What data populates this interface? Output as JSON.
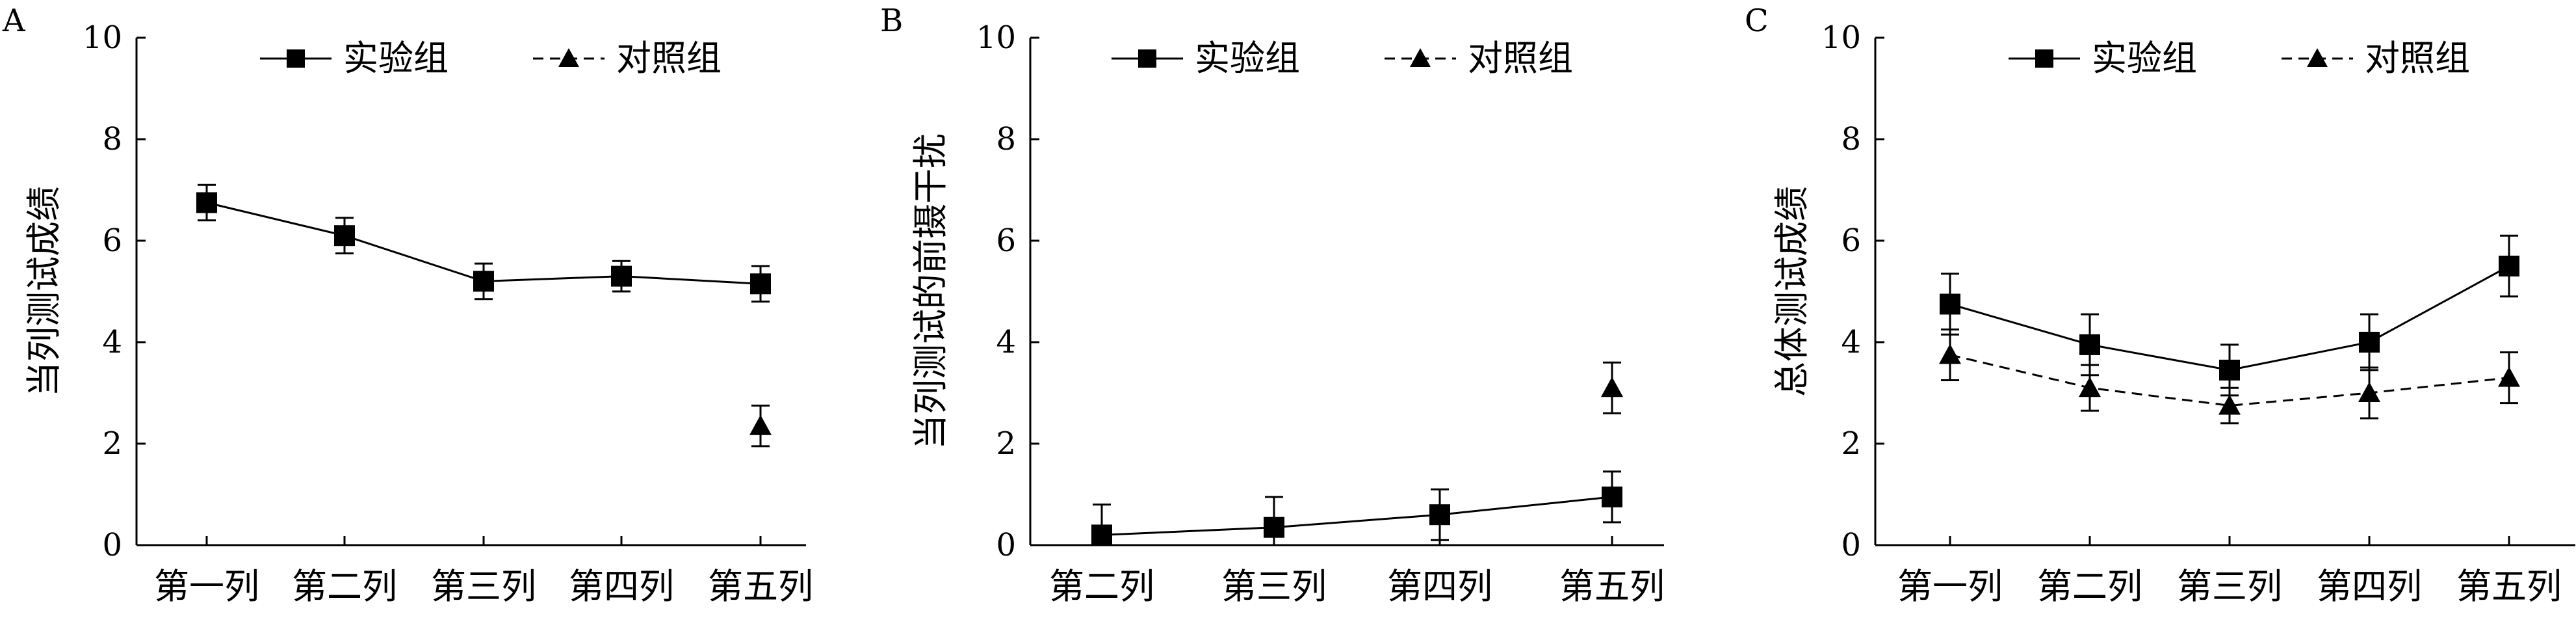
{
  "chart_data": [
    {
      "panel_label": "A",
      "type": "line",
      "ylabel": "当列测试成绩",
      "ylim": [
        0,
        10
      ],
      "yticks": [
        0,
        2,
        4,
        6,
        8,
        10
      ],
      "categories": [
        "第一列",
        "第二列",
        "第三列",
        "第四列",
        "第五列"
      ],
      "series": [
        {
          "name": "实验组",
          "marker": "square",
          "dash": "solid",
          "values": [
            6.75,
            6.1,
            5.2,
            5.3,
            5.15
          ],
          "errors": [
            0.35,
            0.35,
            0.35,
            0.3,
            0.35
          ]
        },
        {
          "name": "对照组",
          "marker": "triangle",
          "dash": "dashed",
          "values": [
            null,
            null,
            null,
            null,
            2.35
          ],
          "errors": [
            null,
            null,
            null,
            null,
            0.4
          ]
        }
      ],
      "legend": "top",
      "grid": false
    },
    {
      "panel_label": "B",
      "type": "line",
      "ylabel": "当列测试的前摄干扰",
      "ylim": [
        0,
        10
      ],
      "yticks": [
        0,
        2,
        4,
        6,
        8,
        10
      ],
      "categories": [
        "第二列",
        "第三列",
        "第四列",
        "第五列"
      ],
      "series": [
        {
          "name": "实验组",
          "marker": "square",
          "dash": "solid",
          "values": [
            0.2,
            0.35,
            0.6,
            0.95
          ],
          "errors": [
            0.6,
            0.6,
            0.5,
            0.5
          ]
        },
        {
          "name": "对照组",
          "marker": "triangle",
          "dash": "dashed",
          "values": [
            null,
            null,
            null,
            3.1
          ],
          "errors": [
            null,
            null,
            null,
            0.5
          ]
        }
      ],
      "legend": "top",
      "grid": false
    },
    {
      "panel_label": "C",
      "type": "line",
      "ylabel": "总体测试成绩",
      "ylim": [
        0,
        10
      ],
      "yticks": [
        0,
        2,
        4,
        6,
        8,
        10
      ],
      "categories": [
        "第一列",
        "第二列",
        "第三列",
        "第四列",
        "第五列"
      ],
      "series": [
        {
          "name": "实验组",
          "marker": "square",
          "dash": "solid",
          "values": [
            4.75,
            3.95,
            3.45,
            4.0,
            5.5
          ],
          "errors": [
            0.6,
            0.6,
            0.5,
            0.55,
            0.6
          ]
        },
        {
          "name": "对照组",
          "marker": "triangle",
          "dash": "dashed",
          "values": [
            3.75,
            3.1,
            2.75,
            3.0,
            3.3
          ],
          "errors": [
            0.5,
            0.45,
            0.35,
            0.5,
            0.5
          ]
        }
      ],
      "legend": "top",
      "grid": false
    }
  ]
}
